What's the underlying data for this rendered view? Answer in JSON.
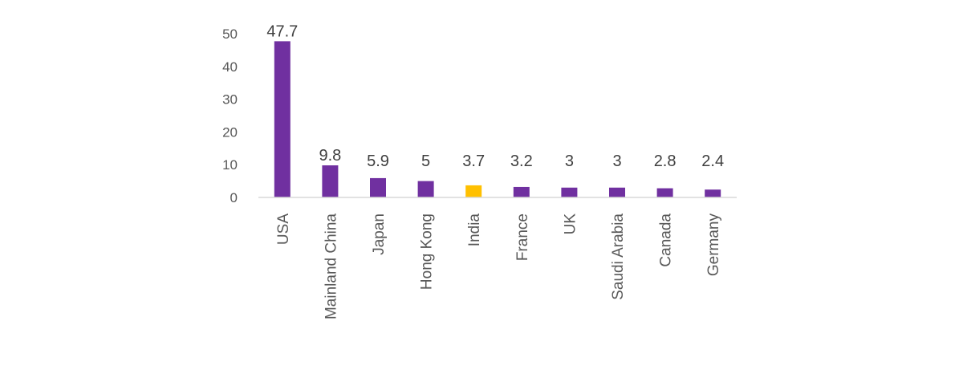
{
  "chart_data": {
    "type": "bar",
    "categories": [
      "USA",
      "Mainland China",
      "Japan",
      "Hong Kong",
      "India",
      "France",
      "UK",
      "Saudi Arabia",
      "Canada",
      "Germany"
    ],
    "values": [
      47.7,
      9.8,
      5.9,
      5,
      3.7,
      3.2,
      3,
      3,
      2.8,
      2.4
    ],
    "data_labels": [
      "47.7",
      "9.8",
      "5.9",
      "5",
      "3.7",
      "3.2",
      "3",
      "3",
      "2.8",
      "2.4"
    ],
    "highlighted_category": "India",
    "title": "",
    "xlabel": "",
    "ylabel": "",
    "ylim": [
      0,
      50
    ],
    "yticks": [
      0,
      10,
      20,
      30,
      40,
      50
    ],
    "grid": false,
    "legend": "none",
    "colors": {
      "bar": "#7030a0",
      "highlight": "#ffc000",
      "axis": "#d9d9d9",
      "tick_text": "#595959",
      "label_text": "#404040"
    }
  }
}
